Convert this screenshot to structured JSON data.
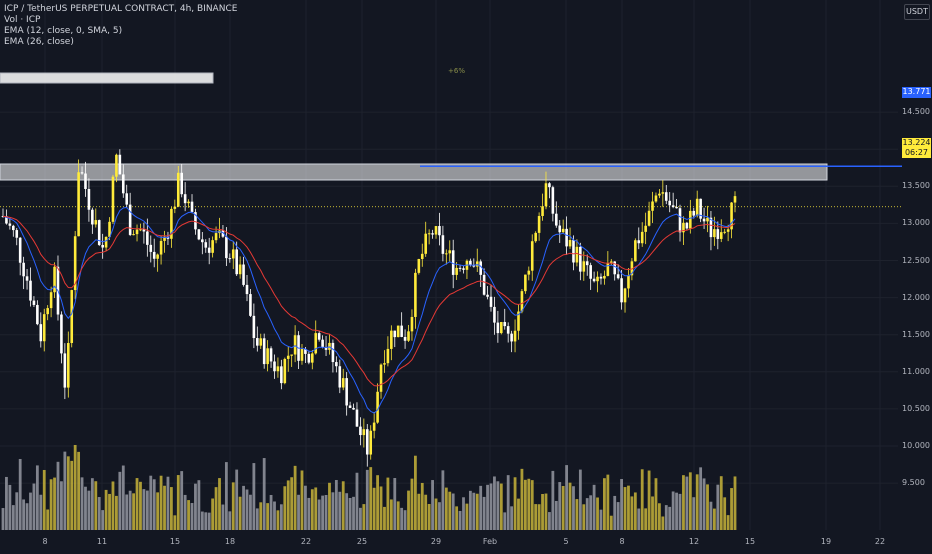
{
  "legend": {
    "symbol": "ICP / TetherUS PERPETUAL CONTRACT, 4h, BINANCE",
    "volume": "Vol · ICP",
    "ema1": "EMA (12, close, 0, SMA, 5)",
    "ema2": "EMA (26, close)"
  },
  "currency": "USDT",
  "price_axis": [
    "14.500",
    "14.000",
    "13.500",
    "13.000",
    "12.500",
    "12.000",
    "11.500",
    "11.000",
    "10.500",
    "10.000",
    "9.500"
  ],
  "date_axis": [
    "8",
    "11",
    "15",
    "18",
    "22",
    "25",
    "29",
    "Feb",
    "5",
    "8",
    "12",
    "15",
    "19",
    "22"
  ],
  "tags": {
    "level": "13.771",
    "last_price": "13.224",
    "countdown": "06:27"
  },
  "annotation": "+6%",
  "colors": {
    "background": "#131722",
    "bull": "#ffeb3b",
    "bear": "#ffffff",
    "ema_fast": "#2962ff",
    "ema_slow": "#e53935",
    "level_line": "#2962ff"
  },
  "chart_data": {
    "type": "candlestick",
    "symbol": "ICP/USDT perpetual",
    "interval": "4h",
    "y_range": [
      9.1,
      14.65
    ],
    "price_ticks": [
      9.5,
      10.0,
      10.5,
      11.0,
      11.5,
      12.0,
      12.5,
      13.0,
      13.5,
      14.0,
      14.5
    ],
    "close_path": [
      13.1,
      12.8,
      12.2,
      11.5,
      12.4,
      10.7,
      13.8,
      13.2,
      12.6,
      13.9,
      13.0,
      12.9,
      12.5,
      12.9,
      13.6,
      13.0,
      12.7,
      12.8,
      12.6,
      12.2,
      11.4,
      11.2,
      11.0,
      11.4,
      11.2,
      11.6,
      11.2,
      10.8,
      10.3,
      9.9,
      11.2,
      11.6,
      11.5,
      12.5,
      12.9,
      12.6,
      12.4,
      12.6,
      12.2,
      11.6,
      11.4,
      11.9,
      12.8,
      13.5,
      12.9,
      12.7,
      12.4,
      12.1,
      12.4,
      12.0,
      12.7,
      13.0,
      13.5,
      13.2,
      12.9,
      13.2,
      12.9,
      13.0,
      13.2
    ]
  },
  "levels": {
    "horizontal_line": 13.771,
    "zone_top": [
      13.87,
      13.92
    ],
    "zone_mid": [
      12.85,
      13.0
    ]
  }
}
